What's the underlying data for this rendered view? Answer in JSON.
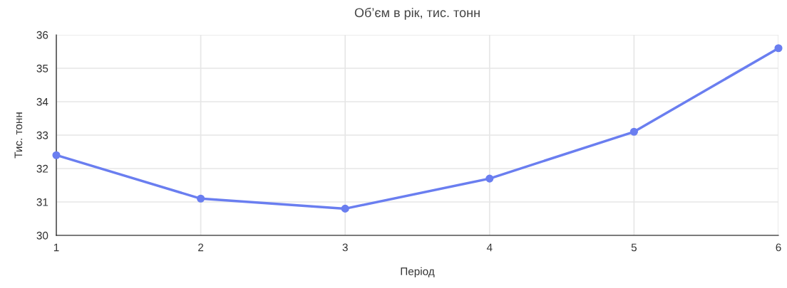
{
  "chart_data": {
    "type": "line",
    "title": "Об’єм в рік, тис. тонн",
    "xlabel": "Період",
    "ylabel": "Тис. тонн",
    "x": [
      1,
      2,
      3,
      4,
      5,
      6
    ],
    "series": [
      {
        "color": "#6a7ef0",
        "values": [
          32.4,
          31.1,
          30.8,
          31.7,
          33.1,
          35.6
        ]
      }
    ],
    "xlim": [
      1,
      6
    ],
    "xticks": [
      1,
      2,
      3,
      4,
      5,
      6
    ],
    "ylim": [
      30,
      36
    ],
    "yticks": [
      30,
      31,
      32,
      33,
      34,
      35,
      36
    ],
    "grid": true,
    "marker": "circle",
    "line_style": "solid"
  }
}
